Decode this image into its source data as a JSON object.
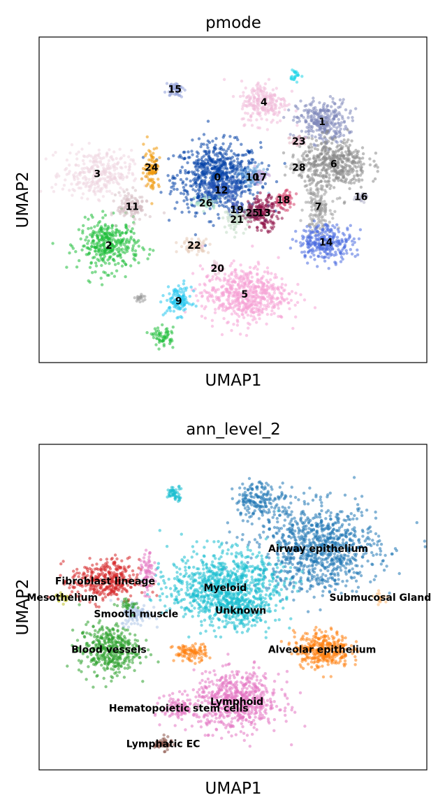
{
  "chart_data": [
    {
      "type": "scatter",
      "title": "pmode",
      "xlabel": "UMAP1",
      "ylabel": "UMAP2",
      "grid": false,
      "legend": "on data",
      "clusters": [
        {
          "label": "0",
          "color": "#023fa5",
          "x": 0.46,
          "y": 0.57,
          "rx": 0.1,
          "ry": 0.095,
          "n": 700
        },
        {
          "label": "1",
          "color": "#7d87b9",
          "x": 0.73,
          "y": 0.74,
          "rx": 0.06,
          "ry": 0.06,
          "n": 300
        },
        {
          "label": "2",
          "color": "#1fbd3a",
          "x": 0.18,
          "y": 0.36,
          "rx": 0.07,
          "ry": 0.07,
          "n": 350
        },
        {
          "label": "3",
          "color": "#efd5e0",
          "x": 0.15,
          "y": 0.58,
          "rx": 0.08,
          "ry": 0.065,
          "n": 300
        },
        {
          "label": "4",
          "color": "#f0b9d8",
          "x": 0.58,
          "y": 0.8,
          "rx": 0.055,
          "ry": 0.06,
          "n": 220
        },
        {
          "label": "5",
          "color": "#f6a3d5",
          "x": 0.53,
          "y": 0.21,
          "rx": 0.1,
          "ry": 0.075,
          "n": 600
        },
        {
          "label": "6",
          "color": "#8a8a8a",
          "x": 0.76,
          "y": 0.61,
          "rx": 0.08,
          "ry": 0.07,
          "n": 450
        },
        {
          "label": "7",
          "color": "#9c9c9c",
          "x": 0.72,
          "y": 0.48,
          "rx": 0.03,
          "ry": 0.07,
          "n": 150
        },
        {
          "label": "9",
          "color": "#25c6ef",
          "x": 0.36,
          "y": 0.19,
          "rx": 0.03,
          "ry": 0.04,
          "n": 120
        },
        {
          "label": "10",
          "color": "#6fa8dc",
          "x": 0.55,
          "y": 0.57,
          "rx": 0.03,
          "ry": 0.03,
          "n": 90
        },
        {
          "label": "11",
          "color": "#d5bdc2",
          "x": 0.24,
          "y": 0.48,
          "rx": 0.035,
          "ry": 0.04,
          "n": 130
        },
        {
          "label": "12",
          "color": "#2a55b8",
          "x": 0.47,
          "y": 0.53,
          "rx": 0.04,
          "ry": 0.03,
          "n": 90
        },
        {
          "label": "13",
          "color": "#8e0f45",
          "x": 0.58,
          "y": 0.46,
          "rx": 0.035,
          "ry": 0.045,
          "n": 160
        },
        {
          "label": "14",
          "color": "#4a6be0",
          "x": 0.74,
          "y": 0.37,
          "rx": 0.065,
          "ry": 0.05,
          "n": 280
        },
        {
          "label": "15",
          "color": "#8f9fd9",
          "x": 0.35,
          "y": 0.84,
          "rx": 0.02,
          "ry": 0.02,
          "n": 50
        },
        {
          "label": "16",
          "color": "#b0b0c8",
          "x": 0.83,
          "y": 0.51,
          "rx": 0.015,
          "ry": 0.015,
          "n": 25
        },
        {
          "label": "17",
          "color": "#c7a8d9",
          "x": 0.57,
          "y": 0.57,
          "rx": 0.02,
          "ry": 0.02,
          "n": 40
        },
        {
          "label": "18",
          "color": "#d33f6a",
          "x": 0.63,
          "y": 0.5,
          "rx": 0.025,
          "ry": 0.025,
          "n": 60
        },
        {
          "label": "19",
          "color": "#3a4fb0",
          "x": 0.51,
          "y": 0.47,
          "rx": 0.02,
          "ry": 0.02,
          "n": 40
        },
        {
          "label": "20",
          "color": "#e8c7d4",
          "x": 0.46,
          "y": 0.29,
          "rx": 0.015,
          "ry": 0.015,
          "n": 20
        },
        {
          "label": "21",
          "color": "#c1dbc5",
          "x": 0.51,
          "y": 0.44,
          "rx": 0.03,
          "ry": 0.03,
          "n": 80
        },
        {
          "label": "22",
          "color": "#e6cbb8",
          "x": 0.4,
          "y": 0.36,
          "rx": 0.035,
          "ry": 0.02,
          "n": 60
        },
        {
          "label": "23",
          "color": "#e2b4c3",
          "x": 0.67,
          "y": 0.68,
          "rx": 0.025,
          "ry": 0.02,
          "n": 40
        },
        {
          "label": "24",
          "color": "#ef9708",
          "x": 0.29,
          "y": 0.6,
          "rx": 0.018,
          "ry": 0.06,
          "n": 90
        },
        {
          "label": "25",
          "color": "#7b2a55",
          "x": 0.55,
          "y": 0.46,
          "rx": 0.02,
          "ry": 0.02,
          "n": 40
        },
        {
          "label": "26",
          "color": "#a9e0c8",
          "x": 0.43,
          "y": 0.49,
          "rx": 0.025,
          "ry": 0.02,
          "n": 40
        },
        {
          "label": "28",
          "color": "#b2b2b2",
          "x": 0.67,
          "y": 0.6,
          "rx": 0.025,
          "ry": 0.02,
          "n": 40
        },
        {
          "label": "",
          "color": "#1fbd3a",
          "x": 0.32,
          "y": 0.08,
          "rx": 0.025,
          "ry": 0.025,
          "n": 60
        },
        {
          "label": "",
          "color": "#20d6e8",
          "x": 0.66,
          "y": 0.88,
          "rx": 0.012,
          "ry": 0.018,
          "n": 25
        },
        {
          "label": "",
          "color": "#9a9a9a",
          "x": 0.26,
          "y": 0.2,
          "rx": 0.015,
          "ry": 0.01,
          "n": 20
        }
      ]
    },
    {
      "type": "scatter",
      "title": "ann_level_2",
      "xlabel": "UMAP1",
      "ylabel": "UMAP2",
      "grid": false,
      "legend": "on data",
      "clusters": [
        {
          "label": "Airway epithelium",
          "color": "#1f77b4",
          "x": 0.72,
          "y": 0.68,
          "rx": 0.14,
          "ry": 0.12,
          "n": 900
        },
        {
          "label": "Myeloid",
          "color": "#17becf",
          "x": 0.48,
          "y": 0.56,
          "rx": 0.13,
          "ry": 0.1,
          "n": 900
        },
        {
          "label": "Unknown",
          "color": "#17becf",
          "x": 0.52,
          "y": 0.49,
          "rx": 0.06,
          "ry": 0.05,
          "n": 150
        },
        {
          "label": "Fibroblast lineage",
          "color": "#d62728",
          "x": 0.17,
          "y": 0.58,
          "rx": 0.08,
          "ry": 0.06,
          "n": 350
        },
        {
          "label": "Mesothelium",
          "color": "#bcbd22",
          "x": 0.06,
          "y": 0.53,
          "rx": 0.015,
          "ry": 0.015,
          "n": 20
        },
        {
          "label": "Smooth muscle",
          "color": "#aec7e8",
          "x": 0.25,
          "y": 0.48,
          "rx": 0.035,
          "ry": 0.035,
          "n": 110
        },
        {
          "label": "Submucosal Gland",
          "color": "#ffbb78",
          "x": 0.88,
          "y": 0.53,
          "rx": 0.015,
          "ry": 0.015,
          "n": 20
        },
        {
          "label": "Blood vessels",
          "color": "#2ca02c",
          "x": 0.18,
          "y": 0.37,
          "rx": 0.07,
          "ry": 0.07,
          "n": 400
        },
        {
          "label": "Alveolar epithelium",
          "color": "#ff7f0e",
          "x": 0.73,
          "y": 0.37,
          "rx": 0.065,
          "ry": 0.05,
          "n": 350
        },
        {
          "label": "Lymphoid",
          "color": "#e377c2",
          "x": 0.51,
          "y": 0.21,
          "rx": 0.1,
          "ry": 0.08,
          "n": 650
        },
        {
          "label": "Hematopoietic stem cells",
          "color": "#e377c2",
          "x": 0.36,
          "y": 0.19,
          "rx": 0.04,
          "ry": 0.035,
          "n": 100
        },
        {
          "label": "Lymphatic EC",
          "color": "#8c564b",
          "x": 0.32,
          "y": 0.08,
          "rx": 0.02,
          "ry": 0.018,
          "n": 50
        },
        {
          "label": "",
          "color": "#ff7f0e",
          "x": 0.39,
          "y": 0.36,
          "rx": 0.04,
          "ry": 0.025,
          "n": 100
        },
        {
          "label": "",
          "color": "#e377c2",
          "x": 0.28,
          "y": 0.6,
          "rx": 0.015,
          "ry": 0.055,
          "n": 70
        },
        {
          "label": "",
          "color": "#17becf",
          "x": 0.35,
          "y": 0.85,
          "rx": 0.02,
          "ry": 0.02,
          "n": 50
        },
        {
          "label": "",
          "color": "#2ca02c",
          "x": 0.23,
          "y": 0.51,
          "rx": 0.02,
          "ry": 0.015,
          "n": 25
        },
        {
          "label": "",
          "color": "#1f77b4",
          "x": 0.57,
          "y": 0.83,
          "rx": 0.06,
          "ry": 0.05,
          "n": 180
        }
      ]
    }
  ]
}
